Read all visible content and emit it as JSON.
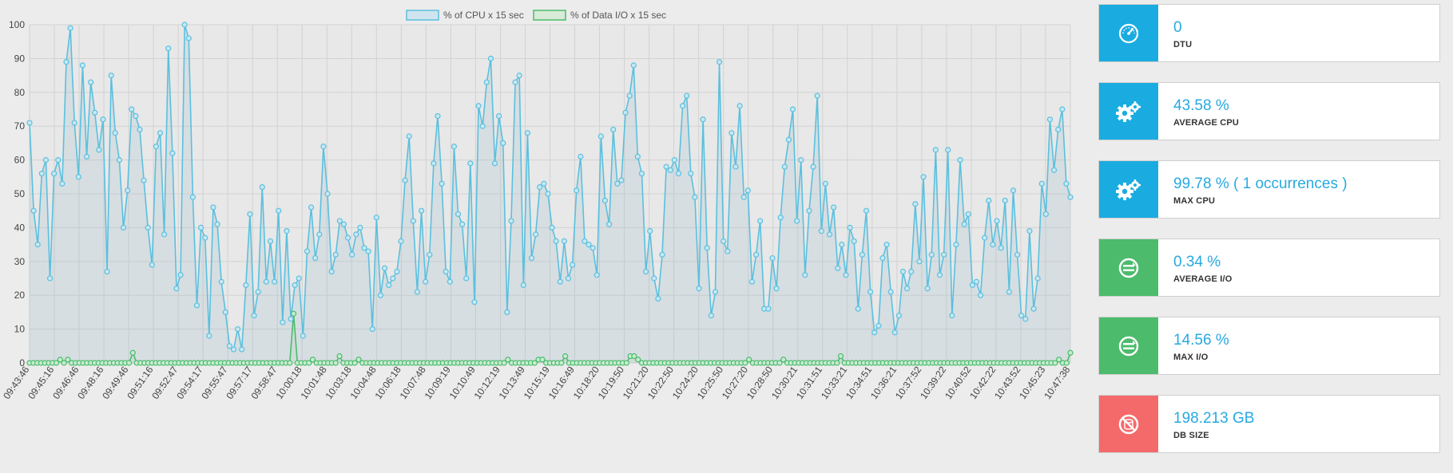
{
  "chart_data": {
    "type": "line",
    "legend_position": "top-center",
    "grid": true,
    "ylim": [
      0,
      100
    ],
    "y_ticks": [
      "0",
      "10",
      "20",
      "30",
      "40",
      "50",
      "60",
      "70",
      "80",
      "90",
      "100"
    ],
    "x_tick_labels": [
      "09:43:46",
      "09:45:16",
      "09:46:46",
      "09:48:16",
      "09:49:46",
      "09:51:16",
      "09:52:47",
      "09:54:17",
      "09:55:47",
      "09:57:17",
      "09:58:47",
      "10:00:18",
      "10:01:48",
      "10:03:18",
      "10:04:48",
      "10:06:18",
      "10:07:48",
      "10:09:19",
      "10:10:49",
      "10:12:19",
      "10:13:49",
      "10:15:19",
      "10:16:49",
      "10:18:20",
      "10:19:50",
      "10:21:20",
      "10:22:50",
      "10:24:20",
      "10:25:50",
      "10:27:20",
      "10:28:50",
      "10:30:21",
      "10:31:51",
      "10:33:21",
      "10:34:51",
      "10:36:21",
      "10:37:52",
      "10:39:22",
      "10:40:52",
      "10:42:22",
      "10:43:52",
      "10:45:23",
      "10:47:38"
    ],
    "series": [
      {
        "name": "% of CPU x 15 sec",
        "color": "#5bc0de",
        "fill": "rgba(151,187,205,0.22)",
        "values": [
          71,
          45,
          35,
          56,
          60,
          25,
          56,
          60,
          53,
          89,
          99,
          71,
          55,
          88,
          61,
          83,
          74,
          63,
          72,
          27,
          85,
          68,
          60,
          40,
          51,
          75,
          73,
          69,
          54,
          40,
          29,
          64,
          68,
          38,
          93,
          62,
          22,
          26,
          100,
          96,
          49,
          17,
          40,
          37,
          8,
          46,
          41,
          24,
          15,
          5,
          4,
          10,
          4,
          23,
          44,
          14,
          21,
          52,
          24,
          36,
          24,
          45,
          12,
          39,
          13,
          23,
          25,
          8,
          33,
          46,
          31,
          38,
          64,
          50,
          27,
          32,
          42,
          41,
          37,
          32,
          38,
          40,
          34,
          33,
          10,
          43,
          20,
          28,
          23,
          25,
          27,
          36,
          54,
          67,
          42,
          21,
          45,
          24,
          32,
          59,
          73,
          53,
          27,
          24,
          64,
          44,
          41,
          25,
          59,
          18,
          76,
          70,
          83,
          90,
          59,
          73,
          65,
          15,
          42,
          83,
          85,
          23,
          68,
          31,
          38,
          52,
          53,
          50,
          40,
          36,
          24,
          36,
          25,
          29,
          51,
          61,
          36,
          35,
          34,
          26,
          67,
          48,
          41,
          69,
          53,
          54,
          74,
          79,
          88,
          61,
          56,
          27,
          39,
          25,
          19,
          32,
          58,
          57,
          60,
          56,
          76,
          79,
          56,
          49,
          22,
          72,
          34,
          14,
          21,
          89,
          36,
          33,
          68,
          58,
          76,
          49,
          51,
          24,
          32,
          42,
          16,
          16,
          31,
          22,
          43,
          58,
          66,
          75,
          42,
          60,
          26,
          45,
          58,
          79,
          39,
          53,
          38,
          46,
          28,
          35,
          26,
          40,
          36,
          16,
          32,
          45,
          21,
          9,
          11,
          31,
          35,
          21,
          9,
          14,
          27,
          22,
          27,
          47,
          30,
          55,
          22,
          32,
          63,
          26,
          32,
          63,
          14,
          35,
          60,
          41,
          44,
          23,
          24,
          20,
          37,
          48,
          35,
          42,
          34,
          48,
          21,
          51,
          32,
          14,
          13,
          39,
          16,
          25,
          53,
          44,
          72,
          57,
          69,
          75,
          53,
          49
        ],
        "values_note": ""
      },
      {
        "name": "% of Data I/O x 15 sec",
        "color": "#4cbb6c",
        "fill": "rgba(151,205,160,0.12)",
        "values": [
          0,
          0,
          0,
          0,
          0,
          0,
          0,
          0,
          1,
          0,
          1,
          0,
          0,
          0,
          0,
          0,
          0,
          0,
          0,
          0,
          0,
          0,
          0,
          0,
          0,
          0,
          0,
          3,
          0,
          0,
          0,
          0,
          0,
          0,
          0,
          0,
          0,
          0,
          0,
          0,
          0,
          0,
          0,
          0,
          0,
          0,
          0,
          0,
          0,
          0,
          0,
          0,
          0,
          0,
          0,
          0,
          0,
          0,
          0,
          0,
          0,
          0,
          0,
          0,
          0,
          0,
          0,
          0,
          0,
          14.56,
          0,
          0,
          0,
          0,
          1,
          0,
          0,
          0,
          0,
          0,
          0,
          2,
          0,
          0,
          0,
          0,
          1,
          0,
          0,
          0,
          0,
          0,
          0,
          0,
          0,
          0,
          0,
          0,
          0,
          0,
          0,
          0,
          0,
          0,
          0,
          0,
          0,
          0,
          0,
          0,
          0,
          0,
          0,
          0,
          0,
          0,
          0,
          0,
          0,
          0,
          0,
          0,
          0,
          0,
          0,
          1,
          0,
          0,
          0,
          0,
          0,
          0,
          0,
          1,
          1,
          0,
          0,
          0,
          0,
          0,
          2,
          0,
          0,
          0,
          0,
          0,
          0,
          0,
          0,
          0,
          0,
          0,
          0,
          0,
          0,
          0,
          0,
          2,
          2,
          1,
          0,
          0,
          0,
          0,
          0,
          0,
          0,
          0,
          0,
          0,
          0,
          0,
          0,
          0,
          0,
          0,
          0,
          0,
          0,
          0,
          0,
          0,
          0,
          0,
          0,
          0,
          0,
          0,
          1,
          0,
          0,
          0,
          0,
          0,
          0,
          0,
          0,
          1,
          0,
          0,
          0,
          0,
          0,
          0,
          0,
          0,
          0,
          0,
          0,
          0,
          0,
          0,
          2,
          0,
          0,
          0,
          0,
          0,
          0,
          0,
          0,
          0,
          0,
          0,
          0,
          0,
          0,
          0,
          0,
          0,
          0,
          0,
          0,
          0,
          0,
          0,
          0,
          0,
          0,
          0,
          0,
          0,
          0,
          0,
          0,
          0,
          0,
          0,
          0,
          0,
          0,
          0,
          0,
          0,
          0,
          0,
          0,
          0,
          0,
          0,
          0,
          0,
          0,
          0,
          0,
          0,
          0,
          0,
          0,
          1,
          0,
          0,
          3
        ]
      }
    ]
  },
  "cards": [
    {
      "value": "0",
      "label": "DTU",
      "icon": "speedometer-icon",
      "icon_bg": "#1aace0"
    },
    {
      "value": "43.58 %",
      "label": "AVERAGE CPU",
      "icon": "gears-icon",
      "icon_bg": "#1aace0"
    },
    {
      "value": "99.78 % ( 1 occurrences )",
      "label": "MAX CPU",
      "icon": "gears-icon",
      "icon_bg": "#1aace0"
    },
    {
      "value": "0.34 %",
      "label": "AVERAGE I/O",
      "icon": "disk-io-icon",
      "icon_bg": "#4cbb6c"
    },
    {
      "value": "14.56 %",
      "label": "MAX I/O",
      "icon": "disk-io-icon",
      "icon_bg": "#4cbb6c"
    },
    {
      "value": "198.213 GB",
      "label": "DB SIZE",
      "icon": "no-database-icon",
      "icon_bg": "#f46a6a"
    }
  ]
}
